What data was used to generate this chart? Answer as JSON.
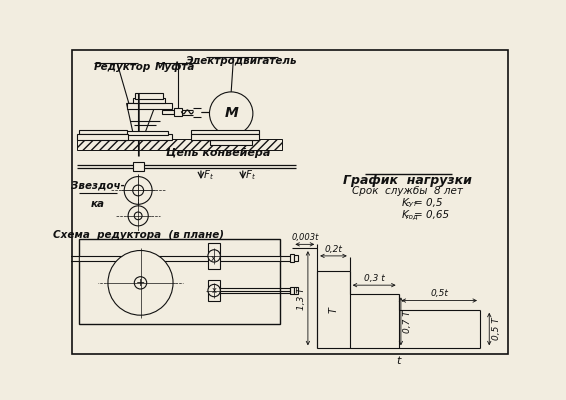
{
  "bg_color": "#f2ede0",
  "line_color": "#111111",
  "title_graf": "График  нагрузки",
  "text_srok": "Срок  службы  8 лет",
  "text_ksut": "K",
  "text_ksut_sub": "сут",
  "text_ksut_val": " = 0,5",
  "text_kgod": "K",
  "text_kgod_sub": "год",
  "text_kgod_val": " = 0,65",
  "label_reduktor": "Редуктор",
  "label_mufta": "Муфта",
  "label_electro": "Электродвигатель",
  "label_cep": "Цепь конвейера",
  "label_zvezd1": "Звездоч-",
  "label_zvezd2": "ка",
  "label_shema": "Схема  редуктора  (в плане)",
  "label_M": "М",
  "label_Ft": "F",
  "label_Ft_sub": "t",
  "graf_dim_003t": "0,003t",
  "graf_dim_02t": "0,2t",
  "graf_dim_03t": "0,3 t",
  "graf_dim_05t": "0,5t",
  "graf_dim_13T": "1,3 T",
  "graf_dim_T": "T",
  "graf_dim_07T": "0,7 T",
  "graf_dim_05T": "0,5 T",
  "graf_dim_t": "t"
}
